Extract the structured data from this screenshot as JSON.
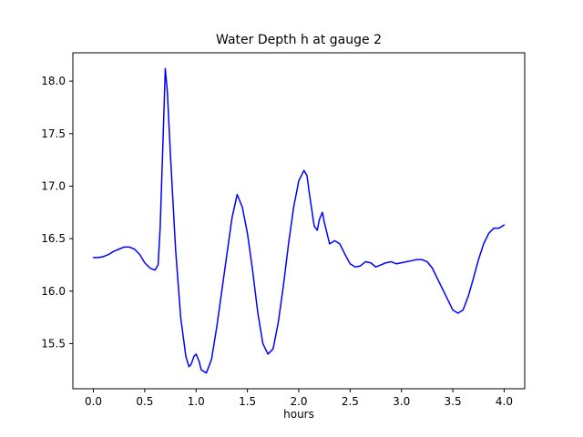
{
  "chart_data": {
    "type": "line",
    "title": "Water Depth h at gauge 2",
    "xlabel": "hours",
    "ylabel": "",
    "line_color": "#0000ff",
    "xlim": [
      -0.2,
      4.2
    ],
    "ylim": [
      15.07,
      18.27
    ],
    "xticks": [
      0.0,
      0.5,
      1.0,
      1.5,
      2.0,
      2.5,
      3.0,
      3.5,
      4.0
    ],
    "yticks": [
      15.5,
      16.0,
      16.5,
      17.0,
      17.5,
      18.0
    ],
    "x": [
      0.0,
      0.05,
      0.1,
      0.15,
      0.2,
      0.25,
      0.3,
      0.35,
      0.4,
      0.45,
      0.5,
      0.55,
      0.6,
      0.63,
      0.65,
      0.68,
      0.7,
      0.72,
      0.75,
      0.8,
      0.85,
      0.9,
      0.93,
      0.95,
      0.98,
      1.0,
      1.03,
      1.05,
      1.1,
      1.15,
      1.2,
      1.25,
      1.3,
      1.35,
      1.4,
      1.45,
      1.5,
      1.55,
      1.6,
      1.65,
      1.7,
      1.75,
      1.8,
      1.85,
      1.9,
      1.95,
      2.0,
      2.05,
      2.08,
      2.1,
      2.15,
      2.18,
      2.2,
      2.23,
      2.25,
      2.3,
      2.35,
      2.4,
      2.45,
      2.5,
      2.55,
      2.6,
      2.65,
      2.7,
      2.75,
      2.8,
      2.85,
      2.9,
      2.95,
      3.0,
      3.05,
      3.1,
      3.15,
      3.2,
      3.25,
      3.3,
      3.35,
      3.4,
      3.45,
      3.5,
      3.55,
      3.6,
      3.65,
      3.7,
      3.75,
      3.8,
      3.85,
      3.9,
      3.95,
      4.0
    ],
    "y": [
      16.32,
      16.32,
      16.33,
      16.35,
      16.38,
      16.4,
      16.42,
      16.42,
      16.4,
      16.35,
      16.27,
      16.22,
      16.2,
      16.25,
      16.6,
      17.5,
      18.12,
      17.9,
      17.3,
      16.4,
      15.75,
      15.38,
      15.28,
      15.3,
      15.38,
      15.4,
      15.33,
      15.25,
      15.22,
      15.35,
      15.65,
      16.0,
      16.35,
      16.7,
      16.92,
      16.8,
      16.55,
      16.2,
      15.8,
      15.5,
      15.4,
      15.45,
      15.7,
      16.05,
      16.45,
      16.8,
      17.05,
      17.15,
      17.1,
      16.95,
      16.62,
      16.58,
      16.68,
      16.75,
      16.65,
      16.45,
      16.48,
      16.45,
      16.35,
      16.26,
      16.23,
      16.24,
      16.28,
      16.27,
      16.23,
      16.25,
      16.27,
      16.28,
      16.26,
      16.27,
      16.28,
      16.29,
      16.3,
      16.3,
      16.28,
      16.22,
      16.12,
      16.02,
      15.92,
      15.82,
      15.79,
      15.82,
      15.95,
      16.12,
      16.3,
      16.45,
      16.55,
      16.6,
      16.6,
      16.63
    ]
  }
}
